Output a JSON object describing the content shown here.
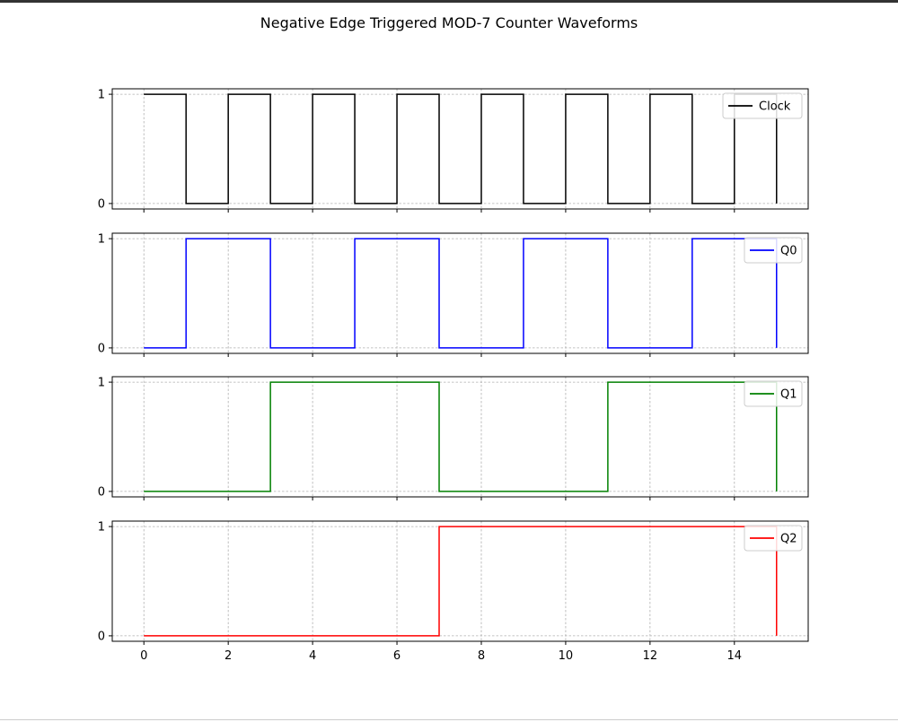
{
  "chart_data": {
    "type": "line",
    "step": "post",
    "title": "Negative Edge Triggered MOD-7 Counter Waveforms",
    "xlabel": "",
    "ylabel": "",
    "grid": true,
    "xlim": [
      -0.75,
      15.75
    ],
    "ylim": [
      -0.05,
      1.05
    ],
    "xticks": [
      0,
      2,
      4,
      6,
      8,
      10,
      12,
      14
    ],
    "yticks": [
      0,
      1
    ],
    "legend_position": "top-right",
    "x": [
      0,
      1,
      2,
      3,
      4,
      5,
      6,
      7,
      8,
      9,
      10,
      11,
      12,
      13,
      14,
      15
    ],
    "series": [
      {
        "name": "Clock",
        "color": "#000000",
        "values": [
          1,
          0,
          1,
          0,
          1,
          0,
          1,
          0,
          1,
          0,
          1,
          0,
          1,
          0,
          1,
          0
        ]
      },
      {
        "name": "Q0",
        "color": "#0000ff",
        "values": [
          0,
          1,
          1,
          0,
          0,
          1,
          1,
          0,
          0,
          1,
          1,
          0,
          0,
          1,
          1,
          0
        ]
      },
      {
        "name": "Q1",
        "color": "#008000",
        "values": [
          0,
          0,
          0,
          1,
          1,
          1,
          1,
          0,
          0,
          0,
          0,
          1,
          1,
          1,
          1,
          0
        ]
      },
      {
        "name": "Q2",
        "color": "#ff0000",
        "values": [
          0,
          0,
          0,
          0,
          0,
          0,
          0,
          1,
          1,
          1,
          1,
          1,
          1,
          1,
          1,
          0
        ]
      }
    ]
  }
}
